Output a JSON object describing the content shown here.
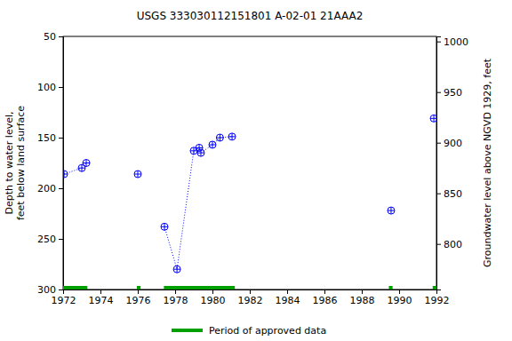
{
  "chart_data": {
    "type": "line",
    "title": "USGS 333030112151801 A-02-01 21AAA2",
    "y_label": "Depth to water level, feet below land surface",
    "y2_label": "Groundwater level above NGVD 1929, feet",
    "xlim": [
      1972,
      1992
    ],
    "xticks": [
      1972,
      1974,
      1976,
      1978,
      1980,
      1982,
      1984,
      1986,
      1988,
      1990,
      1992
    ],
    "ylim": [
      50,
      300
    ],
    "yticks": [
      50,
      100,
      150,
      200,
      250,
      300
    ],
    "y2lim": [
      755,
      1005
    ],
    "y2ticks": [
      800,
      850,
      900,
      950,
      1000
    ],
    "series": [
      {
        "x": [
          1972.05,
          1973.0,
          1973.24
        ],
        "values": [
          186,
          180,
          175
        ],
        "color": "#0000ff",
        "marker": "circle",
        "line_style": "dotted"
      },
      {
        "x": [
          1976.0
        ],
        "values": [
          186
        ],
        "color": "#0000ff",
        "marker": "circle",
        "line_style": "dotted"
      },
      {
        "x": [
          1977.43,
          1978.1,
          1979.0,
          1979.29,
          1979.38,
          1980.0,
          1980.4,
          1981.05
        ],
        "values": [
          238,
          280,
          163,
          160,
          165,
          157,
          150,
          149
        ],
        "color": "#0000ff",
        "marker": "circle",
        "line_style": "dotted"
      },
      {
        "x": [
          1989.57
        ],
        "values": [
          222
        ],
        "color": "#0000ff",
        "marker": "circle",
        "line_style": "dotted"
      },
      {
        "x": [
          1991.86
        ],
        "values": [
          131
        ],
        "color": "#0000ff",
        "marker": "circle",
        "line_style": "dotted"
      }
    ],
    "approved_data": {
      "name": "Period of approved data",
      "color": "#00a000",
      "periods": [
        [
          1972,
          1973.3
        ],
        [
          1975.95,
          1976.15
        ],
        [
          1977.4,
          1981.2
        ],
        [
          1989.45,
          1989.65
        ],
        [
          1991.8,
          1992
        ]
      ]
    }
  }
}
